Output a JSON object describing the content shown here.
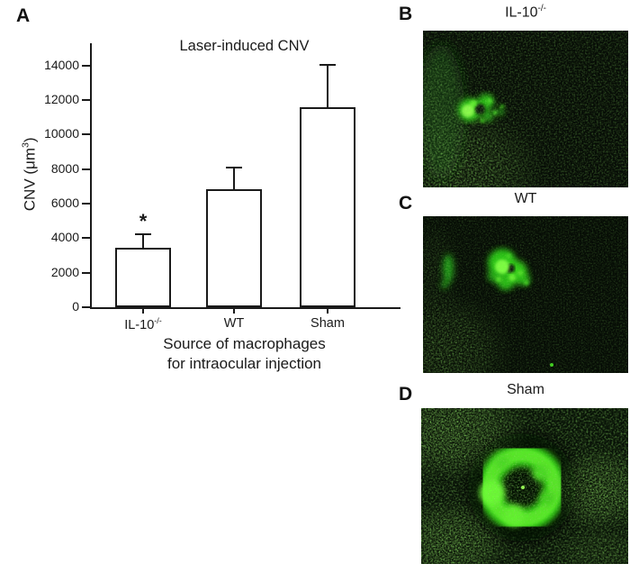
{
  "panel_a": {
    "label": "A"
  },
  "panel_b": {
    "label": "B",
    "title_base": "IL-10",
    "title_sup": "-/-"
  },
  "panel_c": {
    "label": "C",
    "title": "WT"
  },
  "panel_d": {
    "label": "D",
    "title": "Sham"
  },
  "chart_data": {
    "type": "bar",
    "title": "Laser-induced CNV",
    "ylabel": "CNV (μm³)",
    "ylabel_parts": {
      "pre": "CNV (μm",
      "sup": "3",
      "post": ")"
    },
    "xlabel_line1": "Source of macrophages",
    "xlabel_line2": "for intraocular injection",
    "categories": [
      "IL-10-/-",
      "WT",
      "Sham"
    ],
    "values": [
      3450,
      6850,
      11600
    ],
    "errors_up": [
      780,
      1250,
      2450
    ],
    "ylim": [
      0,
      15300
    ],
    "yticks": [
      0,
      2000,
      4000,
      6000,
      8000,
      10000,
      12000,
      14000
    ],
    "grid": false,
    "legend": false,
    "bar_fill": "#ffffff",
    "bar_border": "#1a1a1a",
    "bars": [
      {
        "label_base": "IL-10",
        "label_sup": "-/-",
        "value": 3450,
        "error_up": 780,
        "sig": "*"
      },
      {
        "label_base": "WT",
        "label_sup": "",
        "value": 6850,
        "error_up": 1250,
        "sig": ""
      },
      {
        "label_base": "Sham",
        "label_sup": "",
        "value": 11600,
        "error_up": 2450,
        "sig": ""
      }
    ]
  },
  "colors": {
    "fluorescence_bright": "#6cff35",
    "fluorescence_mid": "#2fd117",
    "micrograph_background": "#060c06",
    "axis": "#1a1a1a"
  }
}
